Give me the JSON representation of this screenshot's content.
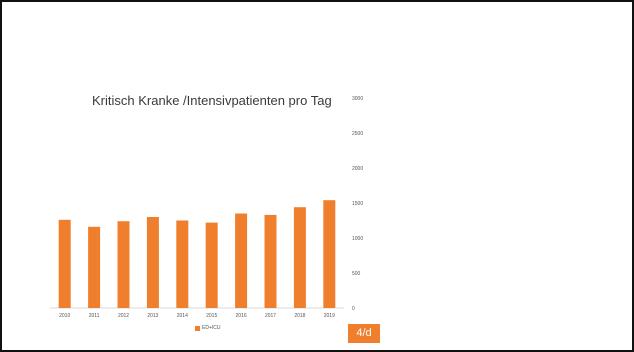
{
  "colors": {
    "bar": "#f07f2d",
    "axis_text": "#555555",
    "axis_line": "#d9d9d9"
  },
  "page_number": "4/d",
  "chart_data": {
    "type": "bar",
    "title": "Kritisch Kranke /Intensivpatienten pro Tag",
    "categories": [
      "2010",
      "2011",
      "2012",
      "2013",
      "2014",
      "2015",
      "2016",
      "2017",
      "2018",
      "2019"
    ],
    "series": [
      {
        "name": "ED+ICU",
        "values": [
          1260,
          1160,
          1240,
          1300,
          1250,
          1220,
          1350,
          1330,
          1440,
          1540
        ]
      }
    ],
    "ylim": [
      0,
      3000
    ],
    "yticks": [
      "0",
      "500",
      "1000",
      "1500",
      "2000",
      "2500",
      "3000"
    ],
    "xlabel": "",
    "ylabel": "",
    "grid": false,
    "legend": "bottom"
  }
}
